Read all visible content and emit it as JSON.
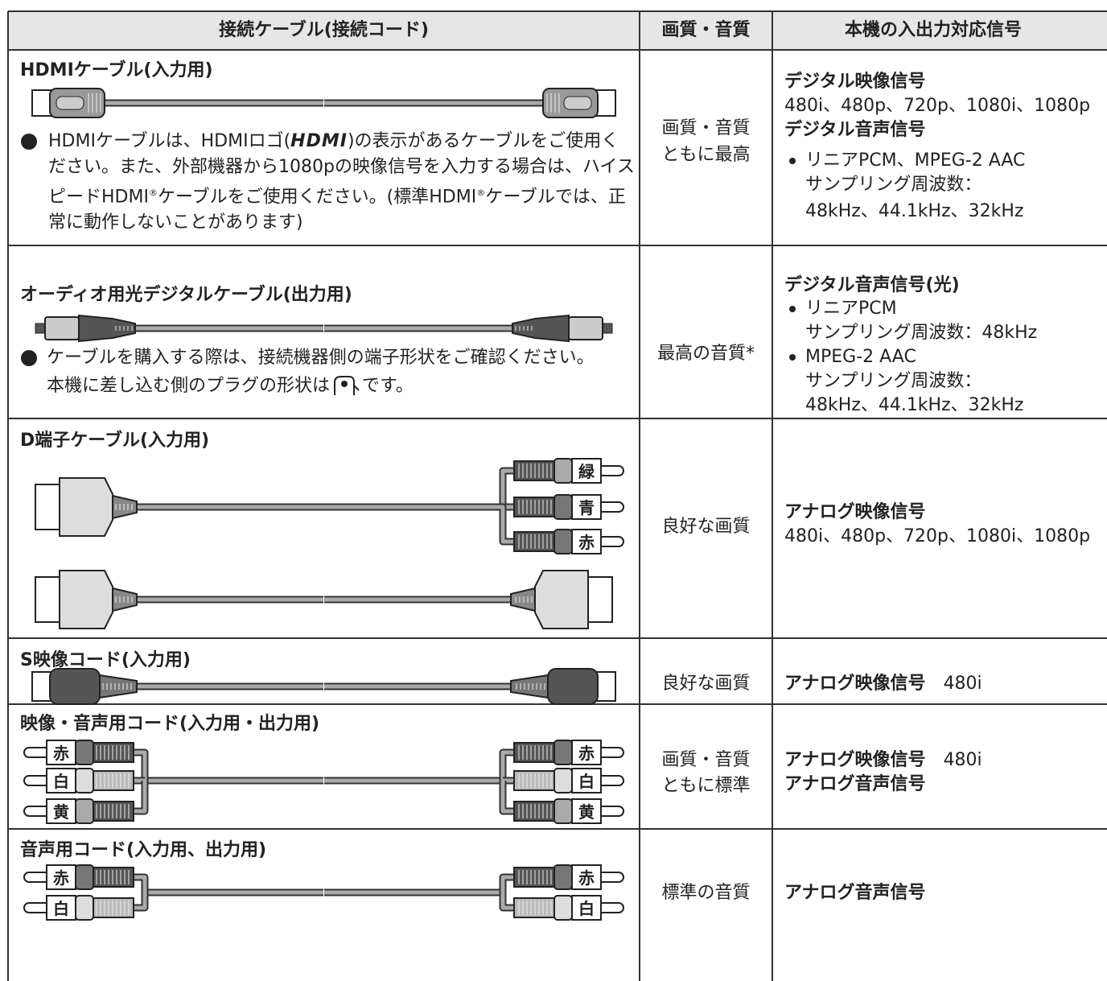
{
  "table": {
    "header": [
      "接続ケーブル(接続コード)",
      "画質・音質",
      "本機の入出力対応信号"
    ],
    "rows": [
      {
        "cable": "HDMIケーブル(入力用)",
        "note": [
          "HDMIケーブルは、HDMIロゴ(",
          "HDMI",
          ")の表示があるケーブルをご使用ください。また、外部機器から1080pの映像信号を入力する場合は、ハイスピードHDMI",
          "®",
          "ケーブルをご使用ください。(標準HDMI",
          "®",
          "ケーブルでは、正常に動作しないことがあります)"
        ],
        "quality": [
          "画質・音質",
          "ともに最高"
        ],
        "signals": [
          {
            "heading": "デジタル映像信号",
            "lines": [
              "480i、480p、720p、1080i、1080p"
            ]
          },
          {
            "heading": "デジタル音声信号",
            "items": [
              {
                "title": "リニアPCM、MPEG-2 AAC",
                "lines": [
                  "サンプリング周波数：",
                  "48kHz、44.1kHz、32kHz"
                ]
              }
            ]
          }
        ]
      },
      {
        "cable": "オーディオ用光デジタルケーブル(出力用)",
        "note": [
          "ケーブルを購入する際は、接続機器側の端子形状をご確認ください。",
          "本機に差し込む側のプラグの形状は",
          "です。"
        ],
        "quality": [
          "最高の音質*"
        ],
        "signals": [
          {
            "heading": "デジタル音声信号(光)",
            "items": [
              {
                "title": "リニアPCM",
                "lines": [
                  "サンプリング周波数：48kHz"
                ]
              },
              {
                "title": "MPEG-2 AAC",
                "lines": [
                  "サンプリング周波数：",
                  "48kHz、44.1kHz、32kHz"
                ]
              }
            ]
          }
        ]
      },
      {
        "cable": "D端子ケーブル(入力用)",
        "plugs": [
          "緑",
          "青",
          "赤"
        ],
        "quality": [
          "良好な画質"
        ],
        "signals": [
          {
            "heading": "アナログ映像信号",
            "lines": [
              "480i、480p、720p、1080i、1080p"
            ]
          }
        ]
      },
      {
        "cable": "S映像コード(入力用)",
        "quality": [
          "良好な画質"
        ],
        "signals": [
          {
            "heading": "アナログ映像信号",
            "value": "480i"
          }
        ]
      },
      {
        "cable": "映像・音声用コード(入力用・出力用)",
        "plugs": [
          "赤",
          "白",
          "黄"
        ],
        "quality": [
          "画質・音質",
          "ともに標準"
        ],
        "signals": [
          {
            "heading": "アナログ映像信号",
            "value": "480i"
          },
          {
            "heading": "アナログ音声信号"
          }
        ]
      },
      {
        "cable": "音声用コード(入力用、出力用)",
        "plugs": [
          "赤",
          "白"
        ],
        "quality": [
          "標準の音質"
        ],
        "signals": [
          {
            "heading": "アナログ音声信号"
          }
        ]
      }
    ]
  }
}
